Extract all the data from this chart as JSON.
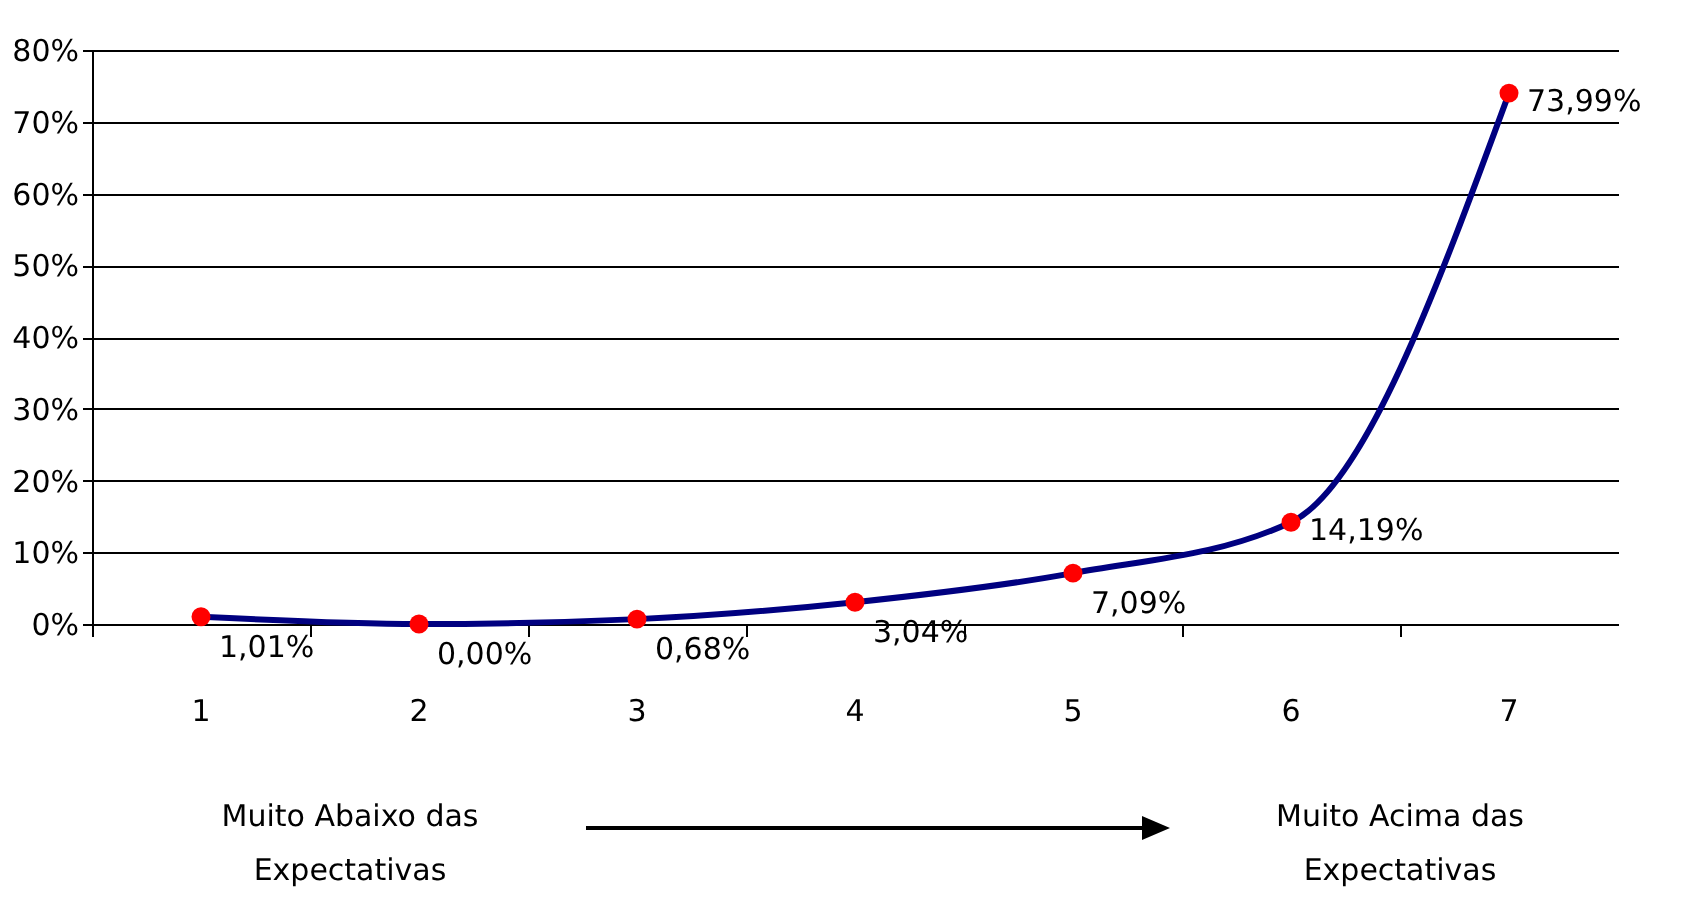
{
  "chart_data": {
    "type": "line",
    "categories": [
      "1",
      "2",
      "3",
      "4",
      "5",
      "6",
      "7"
    ],
    "series": [
      {
        "color": "#000080",
        "colors": [
          "#ff0000",
          "#ff0000",
          "#ff0000",
          "#ff0000",
          "#ff0000",
          "#ff0000",
          "#ff0000"
        ],
        "values": [
          1.01,
          0,
          0.68,
          3.04,
          7.09,
          14.19,
          73.99
        ],
        "value_labels": [
          "1,01%",
          "0,00%",
          "0,68%",
          "3,04%",
          "7,09%",
          "14,19%",
          "73,99%"
        ]
      }
    ],
    "ylim": [
      0,
      80
    ],
    "yticks": [
      {
        "value": 0,
        "label": "0%"
      },
      {
        "value": 10,
        "label": "10%"
      },
      {
        "value": 20,
        "label": "20%"
      },
      {
        "value": 30,
        "label": "30%"
      },
      {
        "value": 40,
        "label": "40%"
      },
      {
        "value": 50,
        "label": "50%"
      },
      {
        "value": 60,
        "label": "60%"
      },
      {
        "value": 70,
        "label": "70%"
      },
      {
        "value": 80,
        "label": "80%"
      }
    ],
    "grid": "y",
    "marker": "circle",
    "line_style": "solid",
    "annotations": [
      "Muito Abaixo das Expectativas",
      "Muito Acima das Expectativas"
    ]
  }
}
